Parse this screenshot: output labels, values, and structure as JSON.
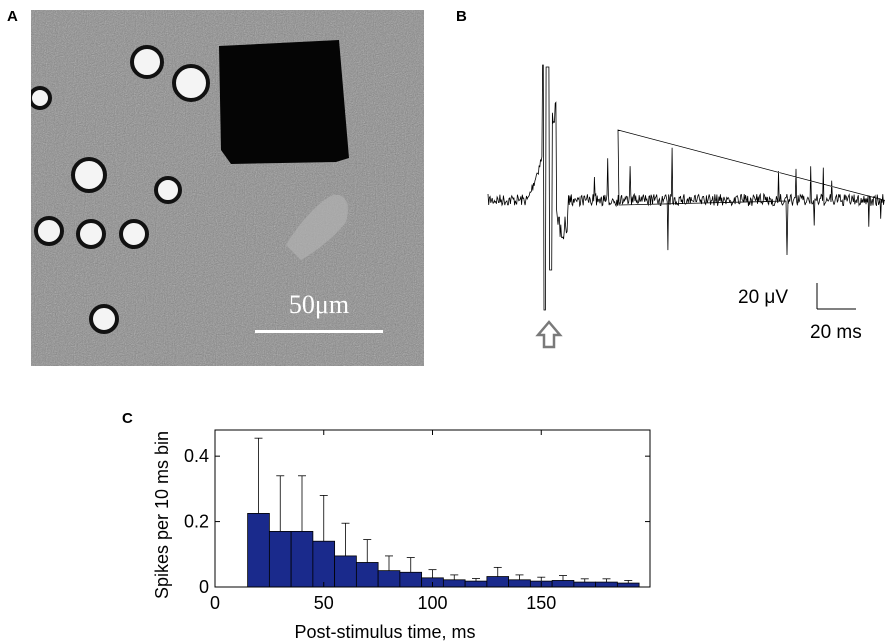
{
  "panels": {
    "a": {
      "letter": "A",
      "scale_bar_label": "50μm"
    },
    "b": {
      "letter": "B",
      "scale_voltage": "20 μV",
      "scale_time": "20 ms"
    },
    "c": {
      "letter": "C"
    }
  },
  "colors": {
    "bar_fill": "#1a2a8c",
    "trace": "#000000",
    "arrow": "#7a7a7a"
  },
  "chart_data": {
    "type": "bar",
    "xlabel": "Post-stimulus time, ms",
    "ylabel": "Spikes per 10 ms bin",
    "xlim": [
      0,
      200
    ],
    "ylim": [
      0,
      0.48
    ],
    "xticks": [
      0,
      50,
      100,
      150
    ],
    "xtick_labels": [
      "0",
      "50",
      "100",
      "150"
    ],
    "yticks": [
      0,
      0.2,
      0.4
    ],
    "ytick_labels": [
      "0",
      "0.2",
      "0.4"
    ],
    "grid": false,
    "bin_width": 10,
    "bin_centers": [
      20,
      30,
      40,
      50,
      60,
      70,
      80,
      90,
      100,
      110,
      120,
      130,
      140,
      150,
      160,
      170,
      180,
      190
    ],
    "values": [
      0.225,
      0.17,
      0.17,
      0.14,
      0.095,
      0.075,
      0.05,
      0.045,
      0.028,
      0.022,
      0.018,
      0.032,
      0.022,
      0.018,
      0.02,
      0.015,
      0.015,
      0.012
    ],
    "errors": [
      0.23,
      0.17,
      0.17,
      0.14,
      0.1,
      0.07,
      0.045,
      0.045,
      0.025,
      0.015,
      0.008,
      0.028,
      0.015,
      0.012,
      0.015,
      0.01,
      0.01,
      0.008
    ]
  }
}
